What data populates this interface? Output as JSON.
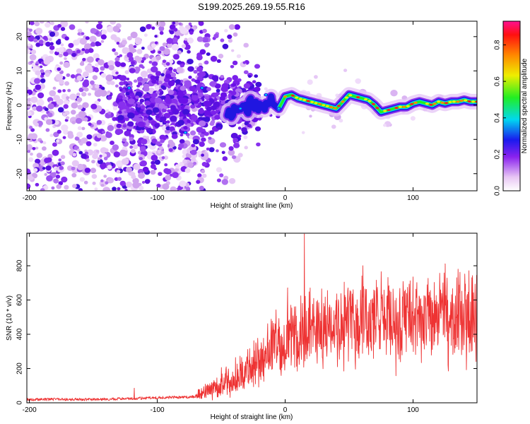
{
  "title": "S199.2025.269.19.55.R16",
  "colors": {
    "line": "#ee3333",
    "frame": "#000000"
  },
  "chart_data": [
    {
      "type": "heatmap",
      "name": "spectrogram",
      "xlabel": "Height of straight line (km)",
      "ylabel": "Frequency (Hz)",
      "xlim": [
        -202,
        150
      ],
      "ylim": [
        -25,
        24.5
      ],
      "xticks": [
        -200,
        -100,
        0,
        100
      ],
      "yticks": [
        -20,
        -10,
        0,
        10,
        20
      ],
      "xtick_labels": [
        "-200",
        "-100",
        "0",
        "100"
      ],
      "ytick_labels": [
        "-20",
        "-10",
        "0",
        "10",
        "20"
      ],
      "ridge": {
        "x": [
          -30,
          -20,
          -15,
          -10,
          -5,
          0,
          5,
          10,
          20,
          30,
          40,
          45,
          50,
          55,
          60,
          65,
          70,
          75,
          80,
          85,
          90,
          95,
          100,
          105,
          110,
          115,
          120,
          125,
          130,
          135,
          140,
          145,
          150
        ],
        "y": [
          -1,
          0,
          0,
          0.5,
          -1,
          2.5,
          3,
          2,
          1,
          0,
          -1,
          1,
          3,
          2.5,
          2,
          1.5,
          0,
          -2,
          -1.5,
          -1,
          -0.5,
          -0.5,
          0.5,
          1,
          0.5,
          0,
          1,
          0.5,
          1,
          1,
          1.5,
          1,
          1
        ]
      },
      "colorbar": {
        "label": "Normalized spectral amplitude",
        "ticks": [
          0.0,
          0.2,
          0.4,
          0.6,
          0.8
        ],
        "tick_labels": [
          "0.0",
          "0.2",
          "0.4",
          "0.6",
          "0.8"
        ],
        "range": [
          0,
          0.93
        ]
      }
    },
    {
      "type": "line",
      "name": "snr",
      "xlabel": "Height of straight line (km)",
      "ylabel": "SNR (10 * v/v)",
      "xlim": [
        -202,
        150
      ],
      "ylim": [
        0,
        990
      ],
      "xticks": [
        -200,
        -100,
        0,
        100
      ],
      "yticks": [
        0,
        200,
        400,
        600,
        800
      ],
      "xtick_labels": [
        "-200",
        "-100",
        "0",
        "100"
      ],
      "ytick_labels": [
        "0",
        "200",
        "400",
        "600",
        "800"
      ],
      "envelope": {
        "x": [
          -202,
          -150,
          -118,
          -100,
          -70,
          -60,
          -50,
          -40,
          -30,
          -20,
          -10,
          0,
          10,
          20,
          30,
          40,
          50,
          60,
          70,
          80,
          90,
          100,
          110,
          120,
          130,
          140,
          150
        ],
        "y": [
          20,
          20,
          25,
          30,
          35,
          80,
          110,
          140,
          190,
          250,
          320,
          360,
          390,
          420,
          440,
          460,
          470,
          480,
          485,
          490,
          490,
          495,
          480,
          470,
          490,
          500,
          510
        ]
      },
      "spikes": [
        {
          "x": -118,
          "y": 85
        },
        {
          "x": 15,
          "y": 985
        },
        {
          "x": 2,
          "y": 670
        },
        {
          "x": 60,
          "y": 740
        },
        {
          "x": 125,
          "y": 810
        }
      ]
    }
  ]
}
